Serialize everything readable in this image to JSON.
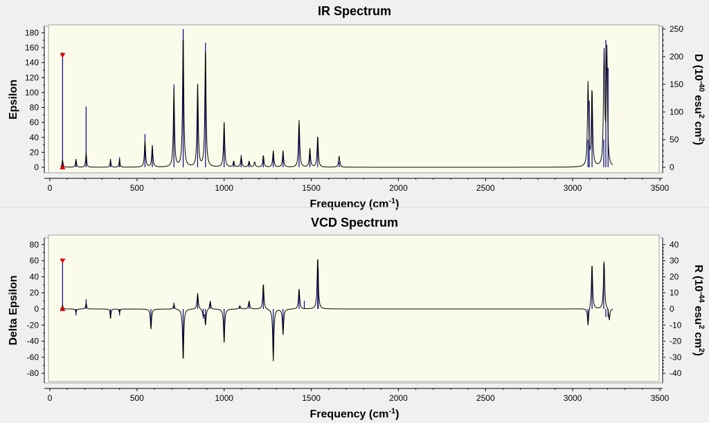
{
  "chart_data": [
    {
      "type": "line",
      "title": "IR Spectrum",
      "xlabel": "Frequency",
      "xlabel_unit": "cm",
      "xlabel_unit_exp": "-1",
      "ylabel": "Epsilon",
      "y2label": {
        "pre": "D (10",
        "exp1": "-40",
        "mid": " esu",
        "exp2": "2",
        "mid2": " cm",
        "exp3": "2",
        "post": ")"
      },
      "xlim": [
        0,
        3500
      ],
      "ylim": [
        0,
        185
      ],
      "y2lim": [
        0,
        250
      ],
      "xticks": [
        0,
        500,
        1000,
        1500,
        2000,
        2500,
        3000,
        3500
      ],
      "yticks": [
        0,
        20,
        40,
        60,
        80,
        100,
        120,
        140,
        160,
        180
      ],
      "y2ticks": [
        0,
        50,
        100,
        150,
        200,
        250
      ],
      "grid": false,
      "marker": {
        "x": 73,
        "y": 150
      },
      "series": [
        {
          "type": "stick",
          "axis": "y2",
          "color": "#00008b",
          "x": [
            73,
            150,
            208,
            348,
            400,
            546,
            588,
            712,
            765,
            848,
            893,
            1000,
            1055,
            1098,
            1143,
            1225,
            1282,
            1338,
            1430,
            1492,
            1537,
            1660,
            3088,
            3095,
            3111,
            3178,
            3190,
            3203
          ],
          "values": [
            208,
            10,
            110,
            15,
            18,
            60,
            40,
            150,
            250,
            150,
            225,
            80,
            10,
            22,
            10,
            15,
            25,
            20,
            70,
            25,
            55,
            10,
            50,
            120,
            130,
            50,
            230,
            180
          ]
        },
        {
          "type": "line",
          "axis": "y",
          "color": "#000000",
          "peaks": [
            [
              73,
              10,
              3
            ],
            [
              150,
              11,
              3
            ],
            [
              208,
              20,
              3
            ],
            [
              348,
              10,
              3
            ],
            [
              400,
              11,
              3
            ],
            [
              546,
              35,
              4
            ],
            [
              588,
              28,
              4
            ],
            [
              712,
              105,
              4
            ],
            [
              765,
              180,
              4
            ],
            [
              848,
              110,
              4
            ],
            [
              893,
              162,
              4
            ],
            [
              1000,
              60,
              4
            ],
            [
              1055,
              8,
              4
            ],
            [
              1098,
              14,
              4
            ],
            [
              1143,
              8,
              4
            ],
            [
              1175,
              7,
              4
            ],
            [
              1225,
              16,
              4
            ],
            [
              1282,
              22,
              4
            ],
            [
              1338,
              22,
              4
            ],
            [
              1430,
              63,
              4
            ],
            [
              1492,
              25,
              4
            ],
            [
              1537,
              42,
              4
            ],
            [
              1660,
              15,
              4
            ],
            [
              3088,
              112,
              4
            ],
            [
              3111,
              104,
              4
            ],
            [
              3180,
              150,
              4
            ],
            [
              3196,
              155,
              4
            ]
          ],
          "baseline": 1
        }
      ]
    },
    {
      "type": "line",
      "title": "VCD Spectrum",
      "xlabel": "Frequency",
      "xlabel_unit": "cm",
      "xlabel_unit_exp": "-1",
      "ylabel": "Delta Epsilon",
      "y2label": {
        "pre": "R (10",
        "exp1": "-44",
        "mid": " esu",
        "exp2": "2",
        "mid2": " cm",
        "exp3": "2",
        "post": ")"
      },
      "xlim": [
        0,
        3500
      ],
      "ylim": [
        -85,
        85
      ],
      "y2lim": [
        -42.5,
        42.5
      ],
      "xticks": [
        0,
        500,
        1000,
        1500,
        2000,
        2500,
        3000,
        3500
      ],
      "yticks": [
        -80,
        -60,
        -40,
        -20,
        0,
        20,
        40,
        60,
        80
      ],
      "y2ticks": [
        -40,
        -30,
        -20,
        -10,
        0,
        10,
        20,
        30,
        40
      ],
      "grid": false,
      "marker": {
        "x": 73,
        "y": 60
      },
      "series": [
        {
          "type": "stick",
          "axis": "y2",
          "color": "#00008b",
          "x": [
            73,
            150,
            208,
            348,
            400,
            580,
            712,
            765,
            848,
            880,
            893,
            920,
            1000,
            1090,
            1143,
            1225,
            1282,
            1338,
            1430,
            1460,
            1537,
            1540,
            3088,
            3111,
            3178,
            3190,
            3203
          ],
          "values": [
            30,
            -4,
            6,
            -6,
            -4,
            -12,
            4,
            -30,
            8,
            -6,
            -10,
            5,
            -20,
            2,
            5,
            15,
            -30,
            -15,
            10,
            5,
            30,
            25,
            -8,
            25,
            28,
            -5,
            -5
          ]
        },
        {
          "type": "line",
          "axis": "y",
          "color": "#000000",
          "peaks": [
            [
              73,
              5,
              3
            ],
            [
              150,
              -5,
              3
            ],
            [
              208,
              8,
              3
            ],
            [
              348,
              -12,
              3
            ],
            [
              400,
              -5,
              3
            ],
            [
              580,
              -25,
              4
            ],
            [
              712,
              6,
              4
            ],
            [
              765,
              -65,
              4
            ],
            [
              848,
              20,
              4
            ],
            [
              880,
              -8,
              4
            ],
            [
              893,
              -20,
              4
            ],
            [
              920,
              10,
              4
            ],
            [
              1000,
              -42,
              4
            ],
            [
              1090,
              4,
              4
            ],
            [
              1143,
              10,
              4
            ],
            [
              1225,
              32,
              4
            ],
            [
              1282,
              -65,
              4
            ],
            [
              1338,
              -32,
              4
            ],
            [
              1430,
              25,
              4
            ],
            [
              1537,
              65,
              4
            ],
            [
              3088,
              -22,
              4
            ],
            [
              3111,
              57,
              4
            ],
            [
              3180,
              59,
              4
            ],
            [
              3210,
              -15,
              4
            ]
          ],
          "baseline": 0
        }
      ]
    }
  ]
}
